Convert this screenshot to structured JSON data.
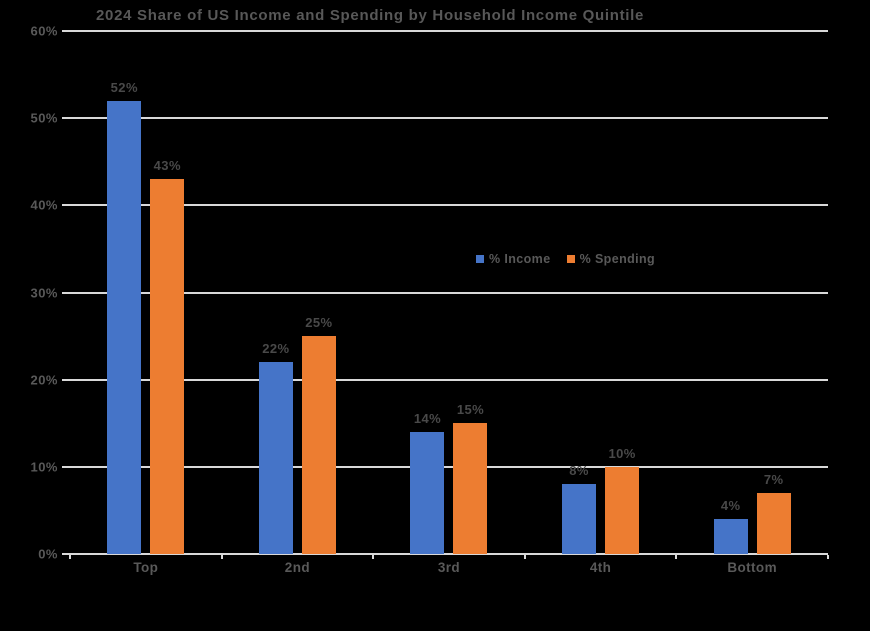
{
  "page": {
    "background_color": "#000000"
  },
  "chart_data": {
    "type": "bar",
    "title": "2024 Share of US Income and Spending by Household Income Quintile",
    "xlabel": "",
    "ylabel": "",
    "categories": [
      "Top",
      "2nd",
      "3rd",
      "4th",
      "Bottom"
    ],
    "series": [
      {
        "name": "% Income",
        "color": "#4574C8",
        "values": [
          52,
          22,
          14,
          8,
          4
        ]
      },
      {
        "name": "% Spending",
        "color": "#ED7D31",
        "values": [
          43,
          25,
          15,
          10,
          7
        ]
      }
    ],
    "value_suffix": "%",
    "ylim": [
      0,
      60
    ],
    "yticks": [
      0,
      10,
      20,
      30,
      40,
      50,
      60
    ],
    "ytick_labels": [
      "0%",
      "10%",
      "20%",
      "30%",
      "40%",
      "50%",
      "60%"
    ],
    "grid": true,
    "legend_position": "inside-center",
    "colors": {
      "grid": "#D9D9D9",
      "title_text": "#585858",
      "axis_text": "#595959",
      "data_label_text": "#494949"
    }
  }
}
